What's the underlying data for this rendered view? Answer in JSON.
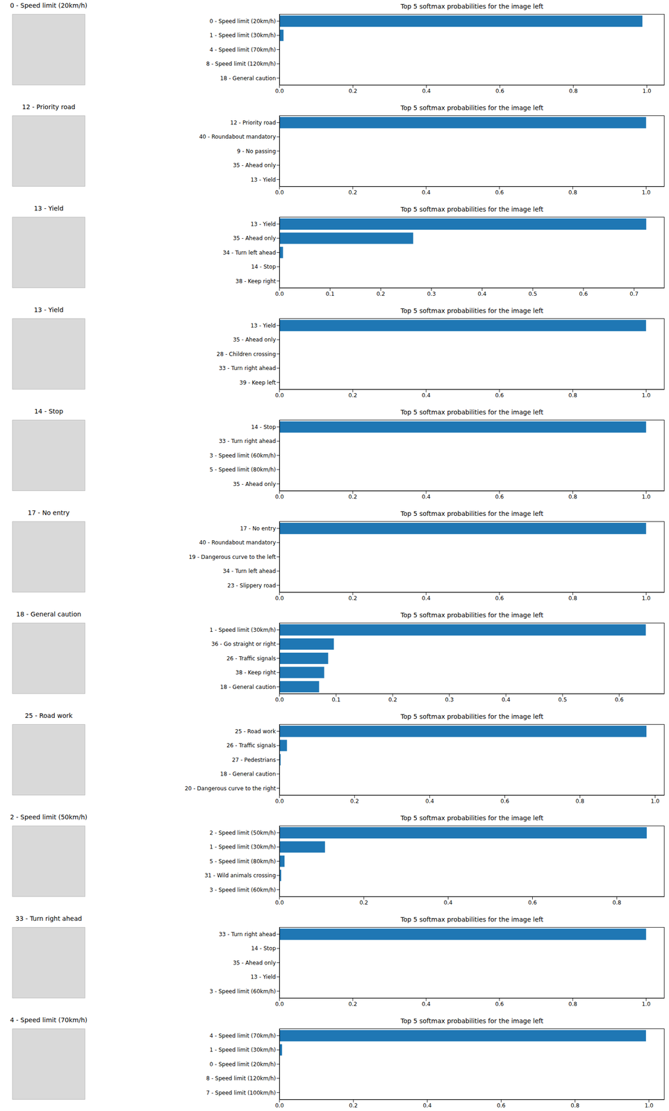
{
  "chart_data": [
    {
      "type": "bar",
      "orientation": "horizontal",
      "title": "Top 5 softmax probabilities for the image left",
      "annotations": [
        "0 - Speed limit (20km/h)"
      ],
      "categories": [
        "0 - Speed limit (20km/h)",
        "1 - Speed limit (30km/h)",
        "4 - Speed limit (70km/h)",
        "8 - Speed limit (120km/h)",
        "18 - General caution"
      ],
      "values": [
        0.988,
        0.011,
        0.0005,
        0.0002,
        0.0001
      ],
      "color": "#1f77b4",
      "xlim": [
        0,
        1.048
      ],
      "xticks": [
        {
          "value": 0,
          "label": "0.0"
        },
        {
          "value": 0.2,
          "label": "0.2"
        },
        {
          "value": 0.4,
          "label": "0.4"
        },
        {
          "value": 0.6,
          "label": "0.6"
        },
        {
          "value": 0.8,
          "label": "0.8"
        },
        {
          "value": 1,
          "label": "1.0"
        }
      ]
    },
    {
      "type": "bar",
      "orientation": "horizontal",
      "title": "Top 5 softmax probabilities for the image left",
      "annotations": [
        "12 - Priority road"
      ],
      "categories": [
        "12 - Priority road",
        "40 - Roundabout mandatory",
        "9 - No passing",
        "35 - Ahead only",
        "13 - Yield"
      ],
      "values": [
        0.9999,
        5e-05,
        2e-05,
        1e-05,
        1e-05
      ],
      "color": "#1f77b4",
      "xlim": [
        0,
        1.05
      ],
      "xticks": [
        {
          "value": 0,
          "label": "0.0"
        },
        {
          "value": 0.2,
          "label": "0.2"
        },
        {
          "value": 0.4,
          "label": "0.4"
        },
        {
          "value": 0.6,
          "label": "0.6"
        },
        {
          "value": 0.8,
          "label": "0.8"
        },
        {
          "value": 1,
          "label": "1.0"
        }
      ]
    },
    {
      "type": "bar",
      "orientation": "horizontal",
      "title": "Top 5 softmax probabilities for the image left",
      "annotations": [
        "13 - Yield"
      ],
      "categories": [
        "13 - Yield",
        "35 - Ahead only",
        "34 - Turn left ahead",
        "14 - Stop",
        "38 - Keep right"
      ],
      "values": [
        0.724,
        0.264,
        0.007,
        0.0005,
        0.0002
      ],
      "color": "#1f77b4",
      "xlim": [
        0,
        0.76
      ],
      "xticks": [
        {
          "value": 0,
          "label": "0.0"
        },
        {
          "value": 0.1,
          "label": "0.1"
        },
        {
          "value": 0.2,
          "label": "0.2"
        },
        {
          "value": 0.3,
          "label": "0.3"
        },
        {
          "value": 0.4,
          "label": "0.4"
        },
        {
          "value": 0.5,
          "label": "0.5"
        },
        {
          "value": 0.6,
          "label": "0.6"
        },
        {
          "value": 0.7,
          "label": "0.7"
        }
      ]
    },
    {
      "type": "bar",
      "orientation": "horizontal",
      "title": "Top 5 softmax probabilities for the image left",
      "annotations": [
        "13 - Yield"
      ],
      "categories": [
        "13 - Yield",
        "35 - Ahead only",
        "28 - Children crossing",
        "33 - Turn right ahead",
        "39 - Keep left"
      ],
      "values": [
        0.9998,
        0.0001,
        3e-05,
        2e-05,
        1e-05
      ],
      "color": "#1f77b4",
      "xlim": [
        0,
        1.05
      ],
      "xticks": [
        {
          "value": 0,
          "label": "0.0"
        },
        {
          "value": 0.2,
          "label": "0.2"
        },
        {
          "value": 0.4,
          "label": "0.4"
        },
        {
          "value": 0.6,
          "label": "0.6"
        },
        {
          "value": 0.8,
          "label": "0.8"
        },
        {
          "value": 1,
          "label": "1.0"
        }
      ]
    },
    {
      "type": "bar",
      "orientation": "horizontal",
      "title": "Top 5 softmax probabilities for the image left",
      "annotations": [
        "14 - Stop"
      ],
      "categories": [
        "14 - Stop",
        "33 - Turn right ahead",
        "3 - Speed limit (60km/h)",
        "5 - Speed limit (80km/h)",
        "35 - Ahead only"
      ],
      "values": [
        0.9999,
        5e-05,
        2e-05,
        1e-05,
        1e-05
      ],
      "color": "#1f77b4",
      "xlim": [
        0,
        1.05
      ],
      "xticks": [
        {
          "value": 0,
          "label": "0.0"
        },
        {
          "value": 0.2,
          "label": "0.2"
        },
        {
          "value": 0.4,
          "label": "0.4"
        },
        {
          "value": 0.6,
          "label": "0.6"
        },
        {
          "value": 0.8,
          "label": "0.8"
        },
        {
          "value": 1,
          "label": "1.0"
        }
      ]
    },
    {
      "type": "bar",
      "orientation": "horizontal",
      "title": "Top 5 softmax probabilities for the image left",
      "annotations": [
        "17 - No entry"
      ],
      "categories": [
        "17 - No entry",
        "40 - Roundabout mandatory",
        "19 - Dangerous curve to the left",
        "34 - Turn left ahead",
        "23 - Slippery road"
      ],
      "values": [
        0.9999,
        4e-05,
        2e-05,
        1e-05,
        1e-05
      ],
      "color": "#1f77b4",
      "xlim": [
        0,
        1.05
      ],
      "xticks": [
        {
          "value": 0,
          "label": "0.0"
        },
        {
          "value": 0.2,
          "label": "0.2"
        },
        {
          "value": 0.4,
          "label": "0.4"
        },
        {
          "value": 0.6,
          "label": "0.6"
        },
        {
          "value": 0.8,
          "label": "0.8"
        },
        {
          "value": 1,
          "label": "1.0"
        }
      ]
    },
    {
      "type": "bar",
      "orientation": "horizontal",
      "title": "Top 5 softmax probabilities for the image left",
      "annotations": [
        "18 - General caution"
      ],
      "categories": [
        "1 - Speed limit (30km/h)",
        "36 - Go straight or right",
        "26 - Traffic signals",
        "38 - Keep right",
        "18 - General caution"
      ],
      "values": [
        0.647,
        0.096,
        0.086,
        0.079,
        0.07
      ],
      "color": "#1f77b4",
      "xlim": [
        0,
        0.68
      ],
      "xticks": [
        {
          "value": 0,
          "label": "0.0"
        },
        {
          "value": 0.1,
          "label": "0.1"
        },
        {
          "value": 0.2,
          "label": "0.2"
        },
        {
          "value": 0.3,
          "label": "0.3"
        },
        {
          "value": 0.4,
          "label": "0.4"
        },
        {
          "value": 0.5,
          "label": "0.5"
        },
        {
          "value": 0.6,
          "label": "0.6"
        }
      ]
    },
    {
      "type": "bar",
      "orientation": "horizontal",
      "title": "Top 5 softmax probabilities for the image left",
      "annotations": [
        "25 - Road work"
      ],
      "categories": [
        "25 - Road work",
        "26 - Traffic signals",
        "27 - Pedestrians",
        "18 - General caution",
        "20 - Dangerous curve to the right"
      ],
      "values": [
        0.977,
        0.02,
        0.003,
        0.0005,
        0.0002
      ],
      "color": "#1f77b4",
      "xlim": [
        0,
        1.025
      ],
      "xticks": [
        {
          "value": 0,
          "label": "0.0"
        },
        {
          "value": 0.2,
          "label": "0.2"
        },
        {
          "value": 0.4,
          "label": "0.4"
        },
        {
          "value": 0.6,
          "label": "0.6"
        },
        {
          "value": 0.8,
          "label": "0.8"
        },
        {
          "value": 1,
          "label": "1.0"
        }
      ]
    },
    {
      "type": "bar",
      "orientation": "horizontal",
      "title": "Top 5 softmax probabilities for the image left",
      "annotations": [
        "2 - Speed limit (50km/h)"
      ],
      "categories": [
        "2 - Speed limit (50km/h)",
        "1 - Speed limit (30km/h)",
        "5 - Speed limit (80km/h)",
        "31 - Wild animals crossing",
        "3 - Speed limit (60km/h)"
      ],
      "values": [
        0.871,
        0.108,
        0.012,
        0.004,
        0.001
      ],
      "color": "#1f77b4",
      "xlim": [
        0,
        0.913
      ],
      "xticks": [
        {
          "value": 0,
          "label": "0.0"
        },
        {
          "value": 0.2,
          "label": "0.2"
        },
        {
          "value": 0.4,
          "label": "0.4"
        },
        {
          "value": 0.6,
          "label": "0.6"
        },
        {
          "value": 0.8,
          "label": "0.8"
        }
      ]
    },
    {
      "type": "bar",
      "orientation": "horizontal",
      "title": "Top 5 softmax probabilities for the image left",
      "annotations": [
        "33 - Turn right ahead"
      ],
      "categories": [
        "33 - Turn right ahead",
        "14 - Stop",
        "35 - Ahead only",
        "13 - Yield",
        "3 - Speed limit (60km/h)"
      ],
      "values": [
        0.9999,
        4e-05,
        2e-05,
        1e-05,
        1e-05
      ],
      "color": "#1f77b4",
      "xlim": [
        0,
        1.05
      ],
      "xticks": [
        {
          "value": 0,
          "label": "0.0"
        },
        {
          "value": 0.2,
          "label": "0.2"
        },
        {
          "value": 0.4,
          "label": "0.4"
        },
        {
          "value": 0.6,
          "label": "0.6"
        },
        {
          "value": 0.8,
          "label": "0.8"
        },
        {
          "value": 1,
          "label": "1.0"
        }
      ]
    },
    {
      "type": "bar",
      "orientation": "horizontal",
      "title": "Top 5 softmax probabilities for the image left",
      "annotations": [
        "4 - Speed limit (70km/h)"
      ],
      "categories": [
        "4 - Speed limit (70km/h)",
        "1 - Speed limit (30km/h)",
        "0 - Speed limit (20km/h)",
        "8 - Speed limit (120km/h)",
        "7 - Speed limit (100km/h)"
      ],
      "values": [
        0.992,
        0.007,
        0.0005,
        0.0002,
        0.0001
      ],
      "color": "#1f77b4",
      "xlim": [
        0,
        1.042
      ],
      "xticks": [
        {
          "value": 0,
          "label": "0.0"
        },
        {
          "value": 0.2,
          "label": "0.2"
        },
        {
          "value": 0.4,
          "label": "0.4"
        },
        {
          "value": 0.6,
          "label": "0.6"
        },
        {
          "value": 0.8,
          "label": "0.8"
        },
        {
          "value": 1,
          "label": "1.0"
        }
      ]
    }
  ]
}
